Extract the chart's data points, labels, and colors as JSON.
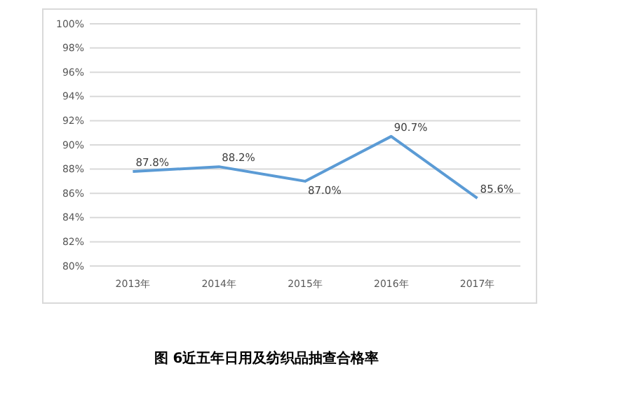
{
  "chart_data": {
    "type": "line",
    "title": "图 6近五年日用及纺织品抽查合格率",
    "categories": [
      "2013年",
      "2014年",
      "2015年",
      "2016年",
      "2017年"
    ],
    "values": [
      87.8,
      88.2,
      87.0,
      90.7,
      85.6
    ],
    "value_labels": [
      "87.8%",
      "88.2%",
      "87.0%",
      "90.7%",
      "85.6%"
    ],
    "color": "#5b9bd5",
    "ylim": [
      80,
      100
    ],
    "yticks": [
      {
        "value": 80,
        "label": "80%"
      },
      {
        "value": 82,
        "label": "82%"
      },
      {
        "value": 84,
        "label": "84%"
      },
      {
        "value": 86,
        "label": "86%"
      },
      {
        "value": 88,
        "label": "88%"
      },
      {
        "value": 90,
        "label": "90%"
      },
      {
        "value": 92,
        "label": "92%"
      },
      {
        "value": 94,
        "label": "94%"
      },
      {
        "value": 96,
        "label": "96%"
      },
      {
        "value": 98,
        "label": "98%"
      },
      {
        "value": 100,
        "label": "100%"
      }
    ],
    "grid": "y",
    "marker": "none",
    "line_style": "solid"
  }
}
